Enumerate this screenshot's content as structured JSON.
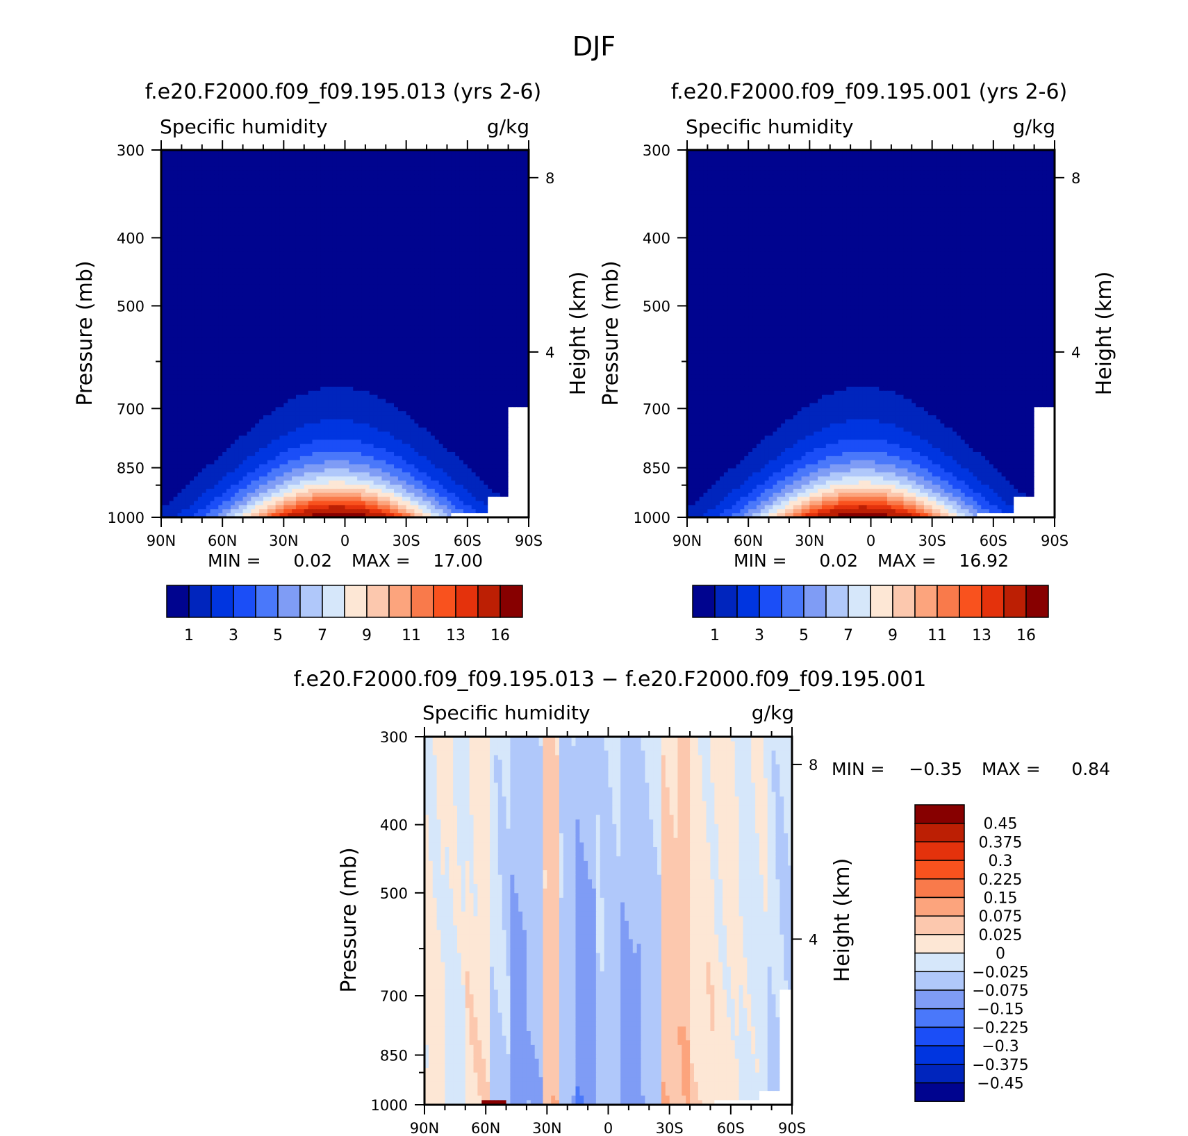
{
  "figure": {
    "title": "DJF"
  },
  "colors": {
    "abs": [
      "#00048f",
      "#0025bd",
      "#0035e0",
      "#1b4ef7",
      "#4a78fa",
      "#7f9cf5",
      "#b0c8fa",
      "#d6e7fa",
      "#fde7d5",
      "#fcc8ae",
      "#fca47d",
      "#f97a4b",
      "#f9521e",
      "#e4320c",
      "#bc1f04",
      "#870000"
    ],
    "diff": [
      "#00048f",
      "#0025bd",
      "#0035e0",
      "#1b4ef7",
      "#4a78fa",
      "#7f9cf5",
      "#b0c8fa",
      "#d6e7fa",
      "#fde7d5",
      "#fcc8ae",
      "#fca47d",
      "#f97a4b",
      "#f9521e",
      "#e4320c",
      "#bc1f04",
      "#870000"
    ],
    "missing": "#ffffff"
  },
  "chart_data": [
    {
      "type": "heatmap",
      "title": "f.e20.F2000.f09_f09.195.013 (yrs 2-6)",
      "left_label": "Specific humidity",
      "units": "g/kg",
      "ylabel": "Pressure (mb)",
      "ylabel_right": "Height (km)",
      "x_ticks": [
        "90N",
        "60N",
        "30N",
        "0",
        "30S",
        "60S",
        "90S"
      ],
      "y_ticks": [
        "300",
        "400",
        "500",
        "700",
        "850",
        "1000"
      ],
      "y_ticks_right": [
        "8",
        "4"
      ],
      "x_range": [
        90,
        -90
      ],
      "y_range": [
        300,
        1000
      ],
      "stats": {
        "min_label": "MIN =",
        "min": "0.02",
        "max_label": "MAX =",
        "max": "17.00"
      },
      "field": {
        "qmax": 17.0,
        "center_lat": 4
      },
      "colorbar": {
        "levels": [
          "1",
          "3",
          "5",
          "7",
          "9",
          "11",
          "13",
          "16"
        ]
      }
    },
    {
      "type": "heatmap",
      "title": "f.e20.F2000.f09_f09.195.001 (yrs 2-6)",
      "left_label": "Specific humidity",
      "units": "g/kg",
      "ylabel": "Pressure (mb)",
      "ylabel_right": "Height (km)",
      "x_ticks": [
        "90N",
        "60N",
        "30N",
        "0",
        "30S",
        "60S",
        "90S"
      ],
      "y_ticks": [
        "300",
        "400",
        "500",
        "700",
        "850",
        "1000"
      ],
      "y_ticks_right": [
        "8",
        "4"
      ],
      "x_range": [
        90,
        -90
      ],
      "y_range": [
        300,
        1000
      ],
      "stats": {
        "min_label": "MIN =",
        "min": "0.02",
        "max_label": "MAX =",
        "max": "16.92"
      },
      "field": {
        "qmax": 16.92,
        "center_lat": 4
      },
      "colorbar": {
        "levels": [
          "1",
          "3",
          "5",
          "7",
          "9",
          "11",
          "13",
          "16"
        ]
      }
    },
    {
      "type": "heatmap",
      "title": "f.e20.F2000.f09_f09.195.013 − f.e20.F2000.f09_f09.195.001",
      "left_label": "Specific humidity",
      "units": "g/kg",
      "ylabel": "Pressure (mb)",
      "ylabel_right": "Height (km)",
      "x_ticks": [
        "90N",
        "60N",
        "30N",
        "0",
        "30S",
        "60S",
        "90S"
      ],
      "y_ticks": [
        "300",
        "400",
        "500",
        "700",
        "850",
        "1000"
      ],
      "y_ticks_right": [
        "8",
        "4"
      ],
      "x_range": [
        90,
        -90
      ],
      "y_range": [
        300,
        1000
      ],
      "stats": {
        "min_label": "MIN =",
        "min": "−0.35",
        "max_label": "MAX =",
        "max": "0.84"
      },
      "bands": [
        {
          "lat": [
            90,
            80
          ],
          "value": 0.01
        },
        {
          "lat": [
            80,
            70
          ],
          "value": -0.01
        },
        {
          "lat": [
            70,
            58
          ],
          "value": 0.015
        },
        {
          "lat": [
            58,
            48
          ],
          "value": -0.03
        },
        {
          "lat": [
            48,
            40
          ],
          "value": -0.1
        },
        {
          "lat": [
            40,
            32
          ],
          "value": -0.06
        },
        {
          "lat": [
            32,
            24
          ],
          "value": 0.05
        },
        {
          "lat": [
            24,
            16
          ],
          "value": -0.05
        },
        {
          "lat": [
            16,
            6
          ],
          "value": -0.12
        },
        {
          "lat": [
            6,
            -6
          ],
          "value": -0.04
        },
        {
          "lat": [
            -6,
            -16
          ],
          "value": -0.1
        },
        {
          "lat": [
            -16,
            -26
          ],
          "value": -0.05
        },
        {
          "lat": [
            -26,
            -40
          ],
          "value": 0.06
        },
        {
          "lat": [
            -40,
            -52
          ],
          "value": 0.015
        },
        {
          "lat": [
            -52,
            -64
          ],
          "value": 0.01
        },
        {
          "lat": [
            -64,
            -78
          ],
          "value": -0.01
        },
        {
          "lat": [
            -78,
            -90
          ],
          "value": -0.03
        }
      ],
      "colorbar": {
        "levels": [
          "0.45",
          "0.375",
          "0.3",
          "0.225",
          "0.15",
          "0.075",
          "0.025",
          "0",
          "−0.025",
          "−0.075",
          "−0.15",
          "−0.225",
          "−0.3",
          "−0.375",
          "−0.45"
        ]
      }
    }
  ]
}
